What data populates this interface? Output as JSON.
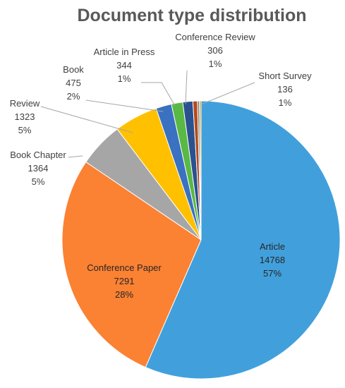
{
  "chart_data": {
    "type": "pie",
    "title": "Document type distribution",
    "slices": [
      {
        "label": "Article",
        "value": 14768,
        "percent": "57%",
        "color": "#41a0dc"
      },
      {
        "label": "Conference Paper",
        "value": 7291,
        "percent": "28%",
        "color": "#fb8133"
      },
      {
        "label": "Book Chapter",
        "value": 1364,
        "percent": "5%",
        "color": "#a6a6a6"
      },
      {
        "label": "Review",
        "value": 1323,
        "percent": "5%",
        "color": "#ffc000"
      },
      {
        "label": "Book",
        "value": 475,
        "percent": "2%",
        "color": "#3a71c0"
      },
      {
        "label": "Article in Press",
        "value": 344,
        "percent": "1%",
        "color": "#5ab845"
      },
      {
        "label": "Conference Review",
        "value": 306,
        "percent": "1%",
        "color": "#2a5290"
      },
      {
        "label": "Short Survey",
        "value": 136,
        "percent": "1%",
        "color": "#b5491c"
      },
      {
        "label": "",
        "value": 60,
        "percent": "",
        "color": "#7f7f7f"
      },
      {
        "label": "",
        "value": 50,
        "percent": "",
        "color": "#c9a227"
      }
    ],
    "legend": "none",
    "data_labels": "category-value-percent"
  }
}
